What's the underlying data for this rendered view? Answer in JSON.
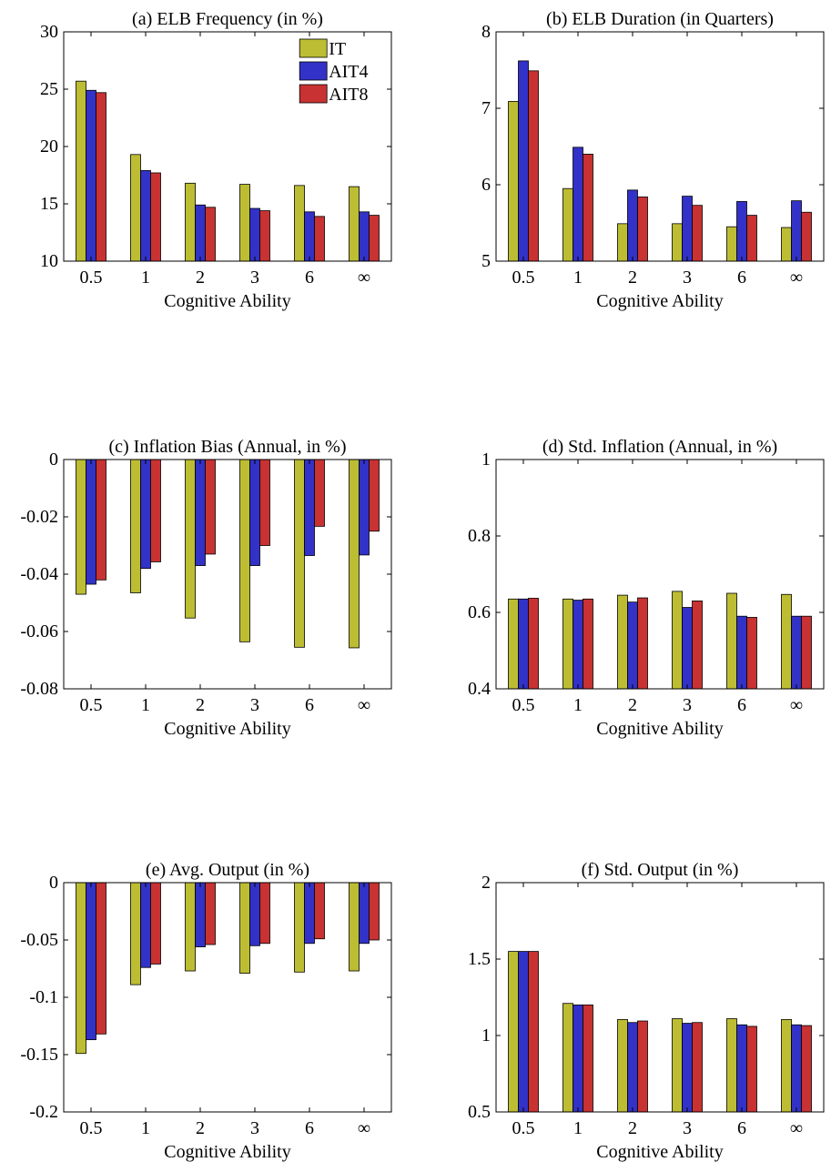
{
  "legend": [
    {
      "name": "IT",
      "color": "#bdbd33"
    },
    {
      "name": "AIT4",
      "color": "#3232c8"
    },
    {
      "name": "AIT8",
      "color": "#c83232"
    }
  ],
  "chart_data": [
    {
      "type": "bar",
      "title": "(a) ELB Frequency (in %)",
      "xlabel": "Cognitive Ability",
      "categories": [
        "0.5",
        "1",
        "2",
        "3",
        "6",
        "∞"
      ],
      "ylim": [
        10,
        30
      ],
      "yticks": [
        "10",
        "15",
        "20",
        "25",
        "30"
      ],
      "yticks_values": [
        10,
        15,
        20,
        25,
        30
      ],
      "legend_position": "top-right",
      "series": [
        {
          "name": "IT",
          "values": [
            25.7,
            19.3,
            16.8,
            16.7,
            16.6,
            16.5
          ]
        },
        {
          "name": "AIT4",
          "values": [
            24.9,
            17.9,
            14.9,
            14.6,
            14.3,
            14.3
          ]
        },
        {
          "name": "AIT8",
          "values": [
            24.7,
            17.7,
            14.7,
            14.4,
            13.9,
            14.0
          ]
        }
      ]
    },
    {
      "type": "bar",
      "title": "(b) ELB Duration (in Quarters)",
      "xlabel": "Cognitive Ability",
      "categories": [
        "0.5",
        "1",
        "2",
        "3",
        "6",
        "∞"
      ],
      "ylim": [
        5,
        8
      ],
      "yticks": [
        "5",
        "6",
        "7",
        "8"
      ],
      "yticks_values": [
        5,
        6,
        7,
        8
      ],
      "series": [
        {
          "name": "IT",
          "values": [
            7.09,
            5.95,
            5.49,
            5.49,
            5.45,
            5.44
          ]
        },
        {
          "name": "AIT4",
          "values": [
            7.62,
            6.49,
            5.93,
            5.85,
            5.78,
            5.79
          ]
        },
        {
          "name": "AIT8",
          "values": [
            7.49,
            6.4,
            5.84,
            5.73,
            5.6,
            5.64
          ]
        }
      ]
    },
    {
      "type": "bar",
      "title": "(c) Inflation Bias (Annual, in %)",
      "xlabel": "Cognitive Ability",
      "categories": [
        "0.5",
        "1",
        "2",
        "3",
        "6",
        "∞"
      ],
      "ylim": [
        -0.08,
        0
      ],
      "yticks": [
        "-0.08",
        "-0.06",
        "-0.04",
        "-0.02",
        "0"
      ],
      "yticks_values": [
        -0.08,
        -0.06,
        -0.04,
        -0.02,
        0
      ],
      "series": [
        {
          "name": "IT",
          "values": [
            -0.047,
            -0.0465,
            -0.0553,
            -0.0636,
            -0.0655,
            -0.0657
          ]
        },
        {
          "name": "AIT4",
          "values": [
            -0.0435,
            -0.038,
            -0.037,
            -0.037,
            -0.0335,
            -0.0333
          ]
        },
        {
          "name": "AIT8",
          "values": [
            -0.042,
            -0.0357,
            -0.033,
            -0.03,
            -0.0233,
            -0.025
          ]
        }
      ]
    },
    {
      "type": "bar",
      "title": "(d) Std. Inflation (Annual, in %)",
      "xlabel": "Cognitive Ability",
      "categories": [
        "0.5",
        "1",
        "2",
        "3",
        "6",
        "∞"
      ],
      "ylim": [
        0.4,
        1
      ],
      "yticks": [
        "0.4",
        "0.6",
        "0.8",
        "1"
      ],
      "yticks_values": [
        0.4,
        0.6,
        0.8,
        1
      ],
      "series": [
        {
          "name": "IT",
          "values": [
            0.635,
            0.635,
            0.645,
            0.655,
            0.65,
            0.647
          ]
        },
        {
          "name": "AIT4",
          "values": [
            0.635,
            0.632,
            0.627,
            0.613,
            0.59,
            0.59
          ]
        },
        {
          "name": "AIT8",
          "values": [
            0.637,
            0.635,
            0.638,
            0.63,
            0.587,
            0.59
          ]
        }
      ]
    },
    {
      "type": "bar",
      "title": "(e) Avg. Output (in %)",
      "xlabel": "Cognitive Ability",
      "categories": [
        "0.5",
        "1",
        "2",
        "3",
        "6",
        "∞"
      ],
      "ylim": [
        -0.2,
        0
      ],
      "yticks": [
        "-0.2",
        "-0.15",
        "-0.1",
        "-0.05",
        "0"
      ],
      "yticks_values": [
        -0.2,
        -0.15,
        -0.1,
        -0.05,
        0
      ],
      "series": [
        {
          "name": "IT",
          "values": [
            -0.149,
            -0.089,
            -0.077,
            -0.079,
            -0.078,
            -0.077
          ]
        },
        {
          "name": "AIT4",
          "values": [
            -0.137,
            -0.074,
            -0.056,
            -0.055,
            -0.053,
            -0.053
          ]
        },
        {
          "name": "AIT8",
          "values": [
            -0.132,
            -0.071,
            -0.054,
            -0.053,
            -0.049,
            -0.05
          ]
        }
      ]
    },
    {
      "type": "bar",
      "title": "(f) Std. Output (in %)",
      "xlabel": "Cognitive Ability",
      "categories": [
        "0.5",
        "1",
        "2",
        "3",
        "6",
        "∞"
      ],
      "ylim": [
        0.5,
        2
      ],
      "yticks": [
        "0.5",
        "1",
        "1.5",
        "2"
      ],
      "yticks_values": [
        0.5,
        1,
        1.5,
        2
      ],
      "series": [
        {
          "name": "IT",
          "values": [
            1.55,
            1.21,
            1.105,
            1.11,
            1.11,
            1.105
          ]
        },
        {
          "name": "AIT4",
          "values": [
            1.55,
            1.2,
            1.085,
            1.08,
            1.07,
            1.07
          ]
        },
        {
          "name": "AIT8",
          "values": [
            1.55,
            1.2,
            1.095,
            1.085,
            1.06,
            1.065
          ]
        }
      ]
    }
  ]
}
